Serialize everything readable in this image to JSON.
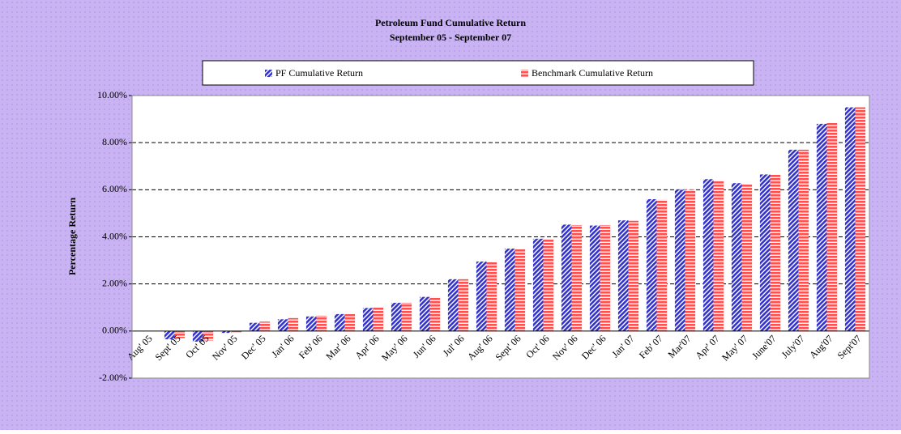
{
  "chart_data": {
    "type": "bar",
    "title": "Petroleum Fund Cumulative Return",
    "subtitle": "September 05 - September 07",
    "y_label": "Percentage Return",
    "categories": [
      "Aug' 05",
      "Sept' 05",
      "Oct' 05",
      "Nov' 05",
      "Dec' 05",
      "Jan' 06",
      "Feb' 06",
      "Mar' 06",
      "Apr' 06",
      "May' 06",
      "Jun' 06",
      "Jul' 06",
      "Aug' 06",
      "Sept' 06",
      "Oct' 06",
      "Nov' 06",
      "Dec' 06",
      "Jan' 07",
      "Feb' 07",
      "Mar'07",
      "Apr' 07",
      "May' 07",
      "June'07",
      "July'07",
      "Aug'07",
      "Sept'07"
    ],
    "series": [
      {
        "name": "PF Cumulative Return",
        "color": "#3333cc",
        "values": [
          0,
          -0.35,
          -0.45,
          -0.08,
          0.35,
          0.5,
          0.62,
          0.72,
          0.98,
          1.2,
          1.45,
          2.2,
          2.95,
          3.5,
          3.92,
          4.52,
          4.48,
          4.7,
          5.6,
          6.0,
          6.45,
          6.28,
          6.65,
          7.7,
          8.8,
          9.5
        ]
      },
      {
        "name": "Benchmark Cumulative Return",
        "color": "#ff5050",
        "values": [
          0,
          -0.3,
          -0.4,
          -0.05,
          0.4,
          0.55,
          0.65,
          0.72,
          1.0,
          1.2,
          1.45,
          2.2,
          2.95,
          3.5,
          3.9,
          4.5,
          4.5,
          4.68,
          5.58,
          6.0,
          6.4,
          6.25,
          6.65,
          7.7,
          8.85,
          9.5
        ]
      }
    ],
    "ylim": [
      -2,
      10
    ],
    "yticks": [
      {
        "value": -2,
        "label": "-2.00%"
      },
      {
        "value": 0,
        "label": "0.00%"
      },
      {
        "value": 2,
        "label": "2.00%"
      },
      {
        "value": 4,
        "label": "4.00%"
      },
      {
        "value": 6,
        "label": "6.00%"
      },
      {
        "value": 8,
        "label": "8.00%"
      },
      {
        "value": 10,
        "label": "10.00%"
      }
    ],
    "grid": true
  }
}
